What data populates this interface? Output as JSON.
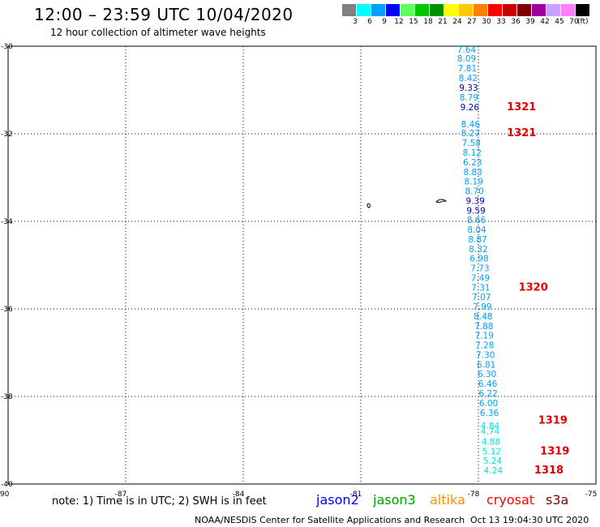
{
  "header": {
    "title": "12:00 – 23:59 UTC 10/04/2020",
    "subtitle": "12 hour collection of altimeter wave heights"
  },
  "legend": {
    "unit": "(ft)",
    "bins": [
      {
        "label": "3",
        "color": "#808080"
      },
      {
        "label": "6",
        "color": "#00ffff"
      },
      {
        "label": "9",
        "color": "#00a0ff"
      },
      {
        "label": "12",
        "color": "#0000ff"
      },
      {
        "label": "15",
        "color": "#60ff60"
      },
      {
        "label": "18",
        "color": "#00c800"
      },
      {
        "label": "21",
        "color": "#009000"
      },
      {
        "label": "24",
        "color": "#ffff00"
      },
      {
        "label": "27",
        "color": "#ffc800"
      },
      {
        "label": "30",
        "color": "#ff8000"
      },
      {
        "label": "33",
        "color": "#ff0000"
      },
      {
        "label": "36",
        "color": "#c80000"
      },
      {
        "label": "39",
        "color": "#800000"
      },
      {
        "label": "42",
        "color": "#a000a0"
      },
      {
        "label": "45",
        "color": "#c8a0ff"
      },
      {
        "label": "70",
        "color": "#ff80ff"
      },
      {
        "label": "",
        "color": "#000000"
      }
    ]
  },
  "axes": {
    "lon_ticks": [
      "-90",
      "-87",
      "-84",
      "-81",
      "-78",
      "-75"
    ],
    "lat_ticks": [
      "-30",
      "-32",
      "-34",
      "-36",
      "-38",
      "-40"
    ]
  },
  "track": [
    {
      "lon": -78.3,
      "lat": -30.15,
      "swh": "7.64",
      "color": "#00a0ff"
    },
    {
      "lon": -78.3,
      "lat": -30.35,
      "swh": "8.09",
      "color": "#00a0ff"
    },
    {
      "lon": -78.28,
      "lat": -30.57,
      "swh": "7.81",
      "color": "#00a0ff"
    },
    {
      "lon": -78.26,
      "lat": -30.8,
      "swh": "8.42",
      "color": "#00a0ff"
    },
    {
      "lon": -78.25,
      "lat": -31.02,
      "swh": "9.33",
      "color": "#0000c8"
    },
    {
      "lon": -78.24,
      "lat": -31.24,
      "swh": "8.79",
      "color": "#00a0ff"
    },
    {
      "lon": -78.22,
      "lat": -31.46,
      "swh": "9.26",
      "color": "#0000c8"
    },
    {
      "lon": -78.2,
      "lat": -31.85,
      "swh": "8.46",
      "color": "#00a0ff"
    },
    {
      "lon": -78.2,
      "lat": -32.06,
      "swh": "8.27",
      "color": "#00a0ff"
    },
    {
      "lon": -78.18,
      "lat": -32.28,
      "swh": "7.58",
      "color": "#00a0ff"
    },
    {
      "lon": -78.16,
      "lat": -32.5,
      "swh": "8.12",
      "color": "#00a0ff"
    },
    {
      "lon": -78.15,
      "lat": -32.72,
      "swh": "6.23",
      "color": "#00a0ff"
    },
    {
      "lon": -78.14,
      "lat": -32.94,
      "swh": "8.83",
      "color": "#00a0ff"
    },
    {
      "lon": -78.12,
      "lat": -33.16,
      "swh": "8.19",
      "color": "#00a0ff"
    },
    {
      "lon": -78.1,
      "lat": -33.38,
      "swh": "8.70",
      "color": "#00a0ff"
    },
    {
      "lon": -78.08,
      "lat": -33.6,
      "swh": "9.39",
      "color": "#0000c8"
    },
    {
      "lon": -78.06,
      "lat": -33.82,
      "swh": "9.59",
      "color": "#0000c8"
    },
    {
      "lon": -78.05,
      "lat": -34.04,
      "swh": "8.66",
      "color": "#00a0ff"
    },
    {
      "lon": -78.04,
      "lat": -34.26,
      "swh": "8.04",
      "color": "#00a0ff"
    },
    {
      "lon": -78.02,
      "lat": -34.48,
      "swh": "8.87",
      "color": "#00a0ff"
    },
    {
      "lon": -78.0,
      "lat": -34.7,
      "swh": "8.32",
      "color": "#00a0ff"
    },
    {
      "lon": -77.98,
      "lat": -34.92,
      "swh": "6.98",
      "color": "#00a0ff"
    },
    {
      "lon": -77.96,
      "lat": -35.14,
      "swh": "7.73",
      "color": "#00a0ff"
    },
    {
      "lon": -77.95,
      "lat": -35.36,
      "swh": "7.49",
      "color": "#00a0ff"
    },
    {
      "lon": -77.94,
      "lat": -35.58,
      "swh": "7.31",
      "color": "#00a0ff"
    },
    {
      "lon": -77.92,
      "lat": -35.8,
      "swh": "7.07",
      "color": "#00a0ff"
    },
    {
      "lon": -77.9,
      "lat": -36.02,
      "swh": "7.99",
      "color": "#00a0ff"
    },
    {
      "lon": -77.88,
      "lat": -36.24,
      "swh": "8.48",
      "color": "#00a0ff"
    },
    {
      "lon": -77.86,
      "lat": -36.46,
      "swh": "7.88",
      "color": "#00a0ff"
    },
    {
      "lon": -77.85,
      "lat": -36.68,
      "swh": "7.19",
      "color": "#00a0ff"
    },
    {
      "lon": -77.84,
      "lat": -36.9,
      "swh": "7.28",
      "color": "#00a0ff"
    },
    {
      "lon": -77.82,
      "lat": -37.12,
      "swh": "7.30",
      "color": "#00a0ff"
    },
    {
      "lon": -77.8,
      "lat": -37.34,
      "swh": "6.81",
      "color": "#00a0ff"
    },
    {
      "lon": -77.78,
      "lat": -37.56,
      "swh": "6.30",
      "color": "#00a0ff"
    },
    {
      "lon": -77.76,
      "lat": -37.78,
      "swh": "6.46",
      "color": "#00a0ff"
    },
    {
      "lon": -77.75,
      "lat": -38.0,
      "swh": "6.22",
      "color": "#00a0ff"
    },
    {
      "lon": -77.74,
      "lat": -38.22,
      "swh": "6.00",
      "color": "#00a0ff"
    },
    {
      "lon": -77.72,
      "lat": -38.44,
      "swh": "6.36",
      "color": "#00a0ff"
    },
    {
      "lon": -77.7,
      "lat": -38.74,
      "swh": "4.84",
      "color": "#00e0e0"
    },
    {
      "lon": -77.7,
      "lat": -38.86,
      "swh": "4.74",
      "color": "#00e0e0"
    },
    {
      "lon": -77.68,
      "lat": -39.1,
      "swh": "4.88",
      "color": "#00e0e0"
    },
    {
      "lon": -77.66,
      "lat": -39.32,
      "swh": "5.12",
      "color": "#00e0e0"
    },
    {
      "lon": -77.64,
      "lat": -39.54,
      "swh": "5.24",
      "color": "#00e0e0"
    },
    {
      "lon": -77.62,
      "lat": -39.76,
      "swh": "4.24",
      "color": "#00e0e0"
    }
  ],
  "time_labels": [
    {
      "lon": -76.9,
      "lat": -31.46,
      "text": "1321"
    },
    {
      "lon": -76.9,
      "lat": -32.06,
      "text": "1321"
    },
    {
      "lon": -76.6,
      "lat": -35.58,
      "text": "1320"
    },
    {
      "lon": -76.1,
      "lat": -38.62,
      "text": "1319"
    },
    {
      "lon": -76.05,
      "lat": -39.32,
      "text": "1319"
    },
    {
      "lon": -76.2,
      "lat": -39.76,
      "text": "1318"
    }
  ],
  "footer": {
    "note": "note: 1) Time is in UTC; 2) SWH is in feet",
    "missions": [
      {
        "name": "jason2",
        "color": "#0000ff"
      },
      {
        "name": "jason3",
        "color": "#00a000"
      },
      {
        "name": "altika",
        "color": "#ff9000"
      },
      {
        "name": "cryosat",
        "color": "#ff0000"
      },
      {
        "name": "s3a",
        "color": "#800000"
      }
    ],
    "credit": "NOAA/NESDIS Center for Satellite Applications and Research",
    "timestamp": "Oct 13 19:04:30 UTC 2020"
  }
}
